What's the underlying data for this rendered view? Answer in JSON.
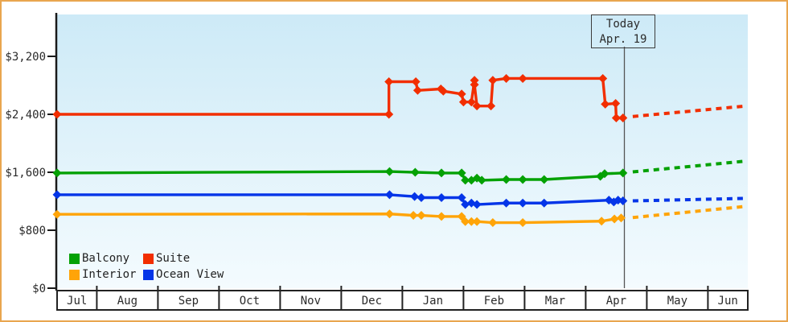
{
  "frame": {
    "border_color": "#e9a64f"
  },
  "chart_data": {
    "type": "line",
    "x_axis": {
      "tick_labels": [
        "Jul",
        "Aug",
        "Sep",
        "Oct",
        "Nov",
        "Dec",
        "Jan",
        "Feb",
        "Mar",
        "Apr",
        "May",
        "Jun"
      ],
      "start_month_fraction": 0.35,
      "end_month_fraction": 11.63
    },
    "y_axis": {
      "tick_labels": [
        "$0",
        "$800",
        "$1,600",
        "$2,400",
        "$3,200"
      ],
      "tick_values": [
        0,
        800,
        1600,
        2400,
        3200
      ],
      "range": [
        0,
        3780
      ],
      "grid": false
    },
    "today": {
      "line1": "Today",
      "line2": "Apr. 19",
      "month_fraction": 9.633
    },
    "series": [
      {
        "name": "Suite",
        "color": "#f22e00",
        "points": [
          [
            0.35,
            2400
          ],
          [
            5.78,
            2400
          ],
          [
            5.78,
            2850
          ],
          [
            6.22,
            2850
          ],
          [
            6.25,
            2730
          ],
          [
            6.63,
            2750
          ],
          [
            6.67,
            2720
          ],
          [
            6.97,
            2680
          ],
          [
            7.0,
            2570
          ],
          [
            7.13,
            2570
          ],
          [
            7.18,
            2870
          ],
          [
            7.18,
            2810
          ],
          [
            7.22,
            2515
          ],
          [
            7.45,
            2515
          ],
          [
            7.48,
            2870
          ],
          [
            7.7,
            2895
          ],
          [
            7.97,
            2895
          ],
          [
            9.28,
            2895
          ],
          [
            9.32,
            2540
          ],
          [
            9.49,
            2550
          ],
          [
            9.5,
            2350
          ],
          [
            9.61,
            2350
          ]
        ],
        "projection": [
          [
            9.77,
            2370
          ],
          [
            11.63,
            2515
          ]
        ]
      },
      {
        "name": "Balcony",
        "color": "#04a104",
        "points": [
          [
            0.35,
            1590
          ],
          [
            5.79,
            1610
          ],
          [
            6.21,
            1600
          ],
          [
            6.64,
            1590
          ],
          [
            6.97,
            1590
          ],
          [
            7.03,
            1490
          ],
          [
            7.13,
            1490
          ],
          [
            7.22,
            1520
          ],
          [
            7.3,
            1490
          ],
          [
            7.7,
            1500
          ],
          [
            7.97,
            1500
          ],
          [
            8.32,
            1500
          ],
          [
            9.24,
            1545
          ],
          [
            9.31,
            1580
          ],
          [
            9.61,
            1590
          ]
        ],
        "projection": [
          [
            9.77,
            1605
          ],
          [
            11.63,
            1755
          ]
        ]
      },
      {
        "name": "Ocean View",
        "color": "#0435e8",
        "points": [
          [
            0.35,
            1290
          ],
          [
            5.79,
            1290
          ],
          [
            6.2,
            1265
          ],
          [
            6.31,
            1250
          ],
          [
            6.64,
            1250
          ],
          [
            6.97,
            1250
          ],
          [
            7.03,
            1155
          ],
          [
            7.13,
            1175
          ],
          [
            7.22,
            1155
          ],
          [
            7.7,
            1175
          ],
          [
            7.97,
            1175
          ],
          [
            8.32,
            1175
          ],
          [
            9.38,
            1215
          ],
          [
            9.46,
            1190
          ],
          [
            9.53,
            1215
          ],
          [
            9.61,
            1205
          ]
        ],
        "projection": [
          [
            9.77,
            1205
          ],
          [
            11.63,
            1240
          ]
        ]
      },
      {
        "name": "Interior",
        "color": "#ffa408",
        "points": [
          [
            0.35,
            1020
          ],
          [
            5.79,
            1025
          ],
          [
            6.18,
            1005
          ],
          [
            6.31,
            1005
          ],
          [
            6.64,
            990
          ],
          [
            6.97,
            990
          ],
          [
            7.03,
            920
          ],
          [
            7.13,
            920
          ],
          [
            7.22,
            920
          ],
          [
            7.48,
            905
          ],
          [
            7.97,
            905
          ],
          [
            9.26,
            925
          ],
          [
            9.47,
            955
          ],
          [
            9.58,
            970
          ]
        ],
        "projection": [
          [
            9.77,
            975
          ],
          [
            11.63,
            1130
          ]
        ]
      }
    ],
    "legend": {
      "items": [
        {
          "label": "Balcony",
          "color": "#04a104"
        },
        {
          "label": "Suite",
          "color": "#f22e00"
        },
        {
          "label": "Interior",
          "color": "#ffa408"
        },
        {
          "label": "Ocean View",
          "color": "#0435e8"
        }
      ]
    },
    "colors": {
      "plot_bg_top": "#cdeaf7",
      "plot_bg_bottom": "#f4fbfe",
      "axis": "#1a1a1a",
      "text": "#2b2b2b",
      "today_line": "#555555"
    }
  }
}
